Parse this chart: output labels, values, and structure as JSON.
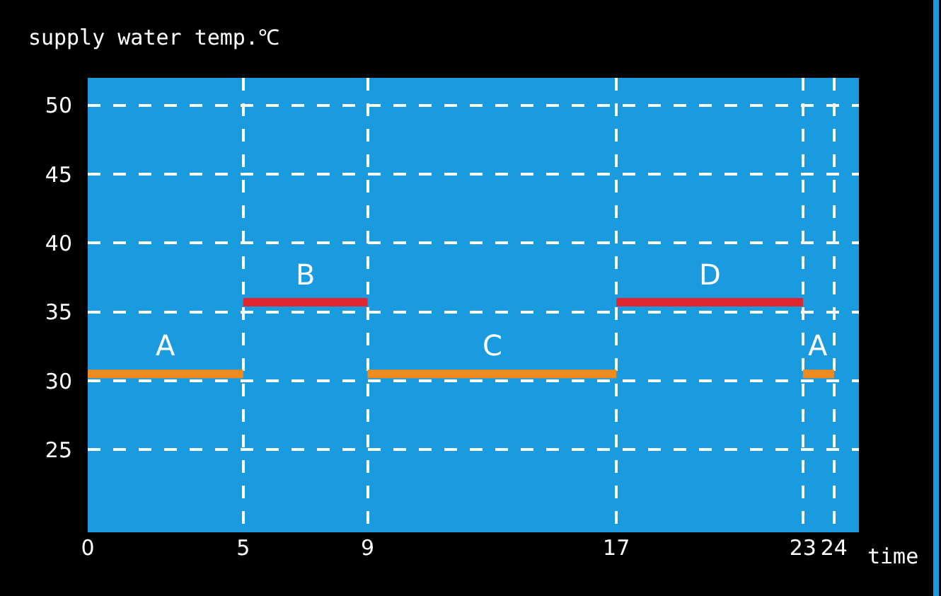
{
  "chart_data": {
    "type": "line",
    "title": "supply water temp.℃",
    "xlabel": "time",
    "series": [
      {
        "color": "#f08a1c",
        "x": [
          0,
          5,
          7,
          9,
          17,
          20,
          23,
          24
        ],
        "values": [
          30.5,
          30.5,
          null,
          30.5,
          30.5,
          null,
          30.5,
          30.5
        ]
      },
      {
        "color": "#e0262e",
        "x": [
          5,
          9,
          13,
          17,
          23
        ],
        "values": [
          35.7,
          35.7,
          null,
          35.7,
          35.7
        ]
      }
    ],
    "annotations": [
      {
        "text": "A",
        "x": 2.5,
        "y": 30.5
      },
      {
        "text": "B",
        "x": 7,
        "y": 35.7
      },
      {
        "text": "C",
        "x": 13,
        "y": 30.5
      },
      {
        "text": "D",
        "x": 20,
        "y": 35.7
      },
      {
        "text": "A",
        "x": 23.5,
        "y": 30.5
      }
    ],
    "xlim": [
      0,
      24.8
    ],
    "ylim": [
      19,
      52
    ],
    "xticks": [
      0,
      5,
      9,
      17,
      23,
      24
    ],
    "yticks": [
      25,
      30,
      35,
      40,
      45,
      50
    ],
    "grid": true,
    "marker": "none"
  }
}
